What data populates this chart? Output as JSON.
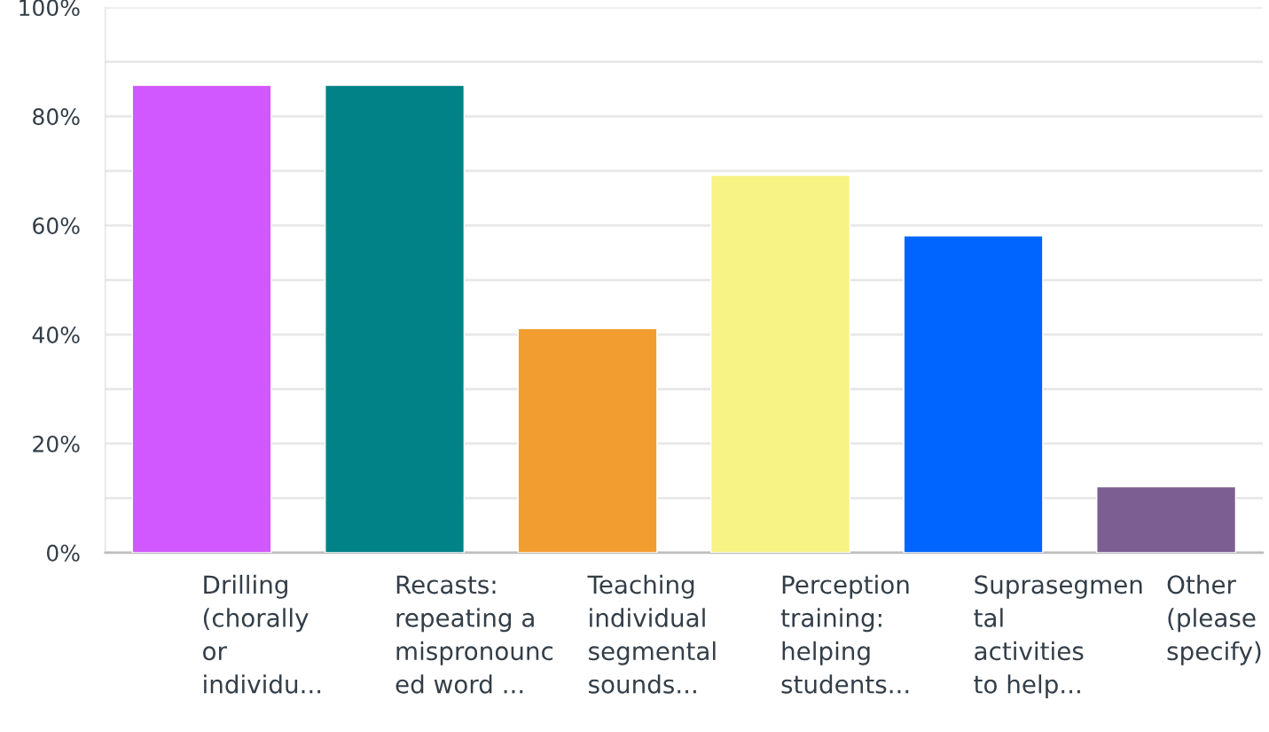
{
  "chart_data": {
    "type": "bar",
    "categories": [
      "Drilling\n(chorally\nor\nindividu...",
      "Recasts:\nrepeating a\nmispronounc\ned word ...",
      "Teaching\nindividual\nsegmental\nsounds...",
      "Perception\ntraining:\nhelping\nstudents...",
      "Suprasegmen\ntal\nactivities\nto help...",
      "Other\n(please\nspecify)"
    ],
    "values": [
      85.7,
      85.7,
      41.1,
      69.2,
      58.1,
      12.1
    ],
    "colors": [
      "#d158ff",
      "#008286",
      "#f29d30",
      "#f7f384",
      "#0065ff",
      "#7c5e93"
    ],
    "ylim": [
      0,
      100
    ],
    "yticks": [
      {
        "value": 0,
        "label": "0%"
      },
      {
        "value": 10,
        "label": null
      },
      {
        "value": 20,
        "label": "20%"
      },
      {
        "value": 30,
        "label": null
      },
      {
        "value": 40,
        "label": "40%"
      },
      {
        "value": 50,
        "label": null
      },
      {
        "value": 60,
        "label": "60%"
      },
      {
        "value": 70,
        "label": null
      },
      {
        "value": 80,
        "label": "80%"
      },
      {
        "value": 90,
        "label": null
      },
      {
        "value": 100,
        "label": "100%"
      }
    ],
    "grid": "y",
    "legend": false
  }
}
